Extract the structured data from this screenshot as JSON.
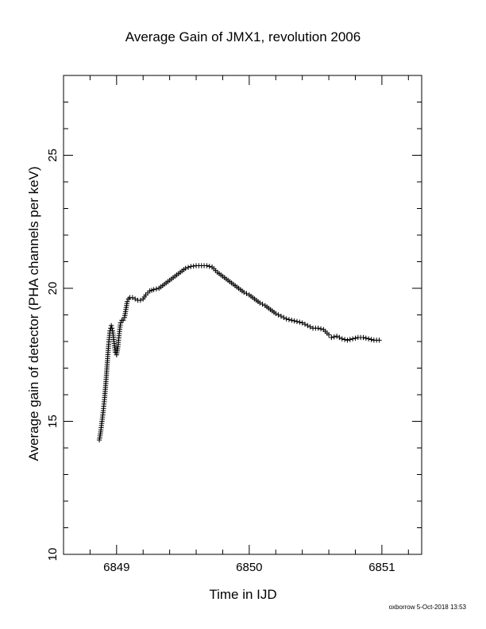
{
  "chart_data": {
    "type": "scatter",
    "title": "Average Gain of JMX1, revolution 2006",
    "xlabel": "Time in IJD",
    "ylabel": "Average gain of detector (PHA channels per keV)",
    "xlim": [
      6848.6,
      6851.3
    ],
    "ylim": [
      10,
      28
    ],
    "x_major_ticks": [
      6849,
      6850,
      6851
    ],
    "x_tick_labels": [
      "6849",
      "6850",
      "6851"
    ],
    "y_major_ticks": [
      10,
      15,
      20,
      25
    ],
    "y_tick_labels": [
      "10",
      "15",
      "20",
      "25"
    ],
    "marker": "plus",
    "grid": false,
    "legend": "none",
    "series": [
      {
        "points": [
          [
            6848.87,
            14.3
          ],
          [
            6848.88,
            14.6
          ],
          [
            6848.89,
            15.0
          ],
          [
            6848.9,
            15.4
          ],
          [
            6848.91,
            15.9
          ],
          [
            6848.92,
            16.5
          ],
          [
            6848.93,
            17.2
          ],
          [
            6848.94,
            17.9
          ],
          [
            6848.95,
            18.4
          ],
          [
            6848.96,
            18.6
          ],
          [
            6848.97,
            18.4
          ],
          [
            6848.98,
            18.0
          ],
          [
            6848.99,
            17.6
          ],
          [
            6849.0,
            17.5
          ],
          [
            6849.01,
            17.8
          ],
          [
            6849.02,
            18.3
          ],
          [
            6849.03,
            18.7
          ],
          [
            6849.04,
            18.8
          ],
          [
            6849.05,
            18.8
          ],
          [
            6849.06,
            18.9
          ],
          [
            6849.07,
            19.2
          ],
          [
            6849.08,
            19.5
          ],
          [
            6849.09,
            19.6
          ],
          [
            6849.1,
            19.65
          ],
          [
            6849.12,
            19.65
          ],
          [
            6849.14,
            19.6
          ],
          [
            6849.16,
            19.55
          ],
          [
            6849.18,
            19.55
          ],
          [
            6849.2,
            19.6
          ],
          [
            6849.22,
            19.75
          ],
          [
            6849.25,
            19.9
          ],
          [
            6849.28,
            19.95
          ],
          [
            6849.32,
            20.0
          ],
          [
            6849.36,
            20.15
          ],
          [
            6849.4,
            20.3
          ],
          [
            6849.44,
            20.45
          ],
          [
            6849.48,
            20.6
          ],
          [
            6849.52,
            20.75
          ],
          [
            6849.56,
            20.82
          ],
          [
            6849.6,
            20.85
          ],
          [
            6849.64,
            20.85
          ],
          [
            6849.68,
            20.85
          ],
          [
            6849.72,
            20.8
          ],
          [
            6849.76,
            20.6
          ],
          [
            6849.8,
            20.45
          ],
          [
            6849.84,
            20.3
          ],
          [
            6849.88,
            20.15
          ],
          [
            6849.92,
            20.0
          ],
          [
            6849.96,
            19.85
          ],
          [
            6850.0,
            19.75
          ],
          [
            6850.04,
            19.6
          ],
          [
            6850.08,
            19.45
          ],
          [
            6850.12,
            19.35
          ],
          [
            6850.16,
            19.2
          ],
          [
            6850.2,
            19.05
          ],
          [
            6850.24,
            18.95
          ],
          [
            6850.28,
            18.85
          ],
          [
            6850.32,
            18.8
          ],
          [
            6850.36,
            18.75
          ],
          [
            6850.4,
            18.7
          ],
          [
            6850.44,
            18.6
          ],
          [
            6850.48,
            18.5
          ],
          [
            6850.52,
            18.5
          ],
          [
            6850.56,
            18.45
          ],
          [
            6850.6,
            18.25
          ],
          [
            6850.62,
            18.15
          ],
          [
            6850.66,
            18.2
          ],
          [
            6850.7,
            18.1
          ],
          [
            6850.74,
            18.05
          ],
          [
            6850.78,
            18.1
          ],
          [
            6850.82,
            18.15
          ],
          [
            6850.86,
            18.15
          ],
          [
            6850.9,
            18.1
          ],
          [
            6850.94,
            18.05
          ],
          [
            6850.98,
            18.05
          ]
        ]
      }
    ]
  },
  "footer": {
    "stamp": "oxborrow  5-Oct-2018 13:53"
  }
}
